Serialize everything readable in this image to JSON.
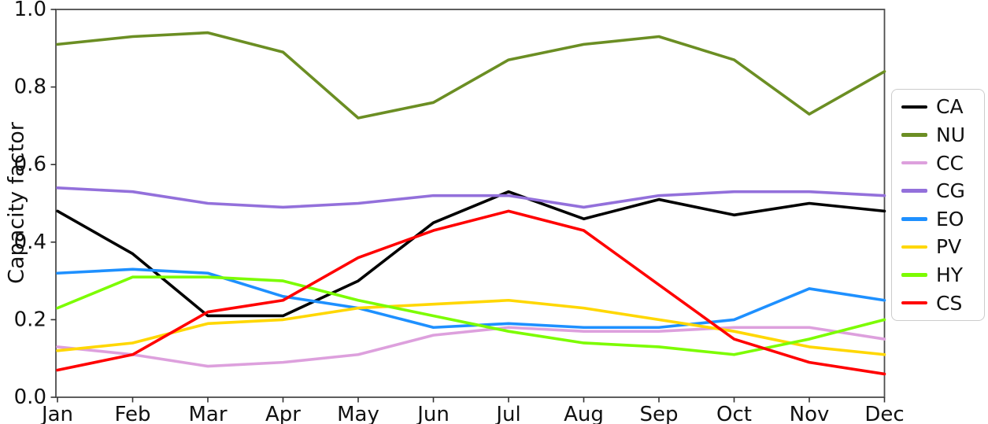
{
  "figure": {
    "background": "#ffffff",
    "spine_color": "#4d4d4d",
    "tick_color": "#333333",
    "label_color": "#111111"
  },
  "chart_data": {
    "type": "line",
    "title": "",
    "xlabel": "",
    "ylabel": "Capacity factor",
    "categories": [
      "Jan",
      "Feb",
      "Mar",
      "Apr",
      "May",
      "Jun",
      "Jul",
      "Aug",
      "Sep",
      "Oct",
      "Nov",
      "Dec"
    ],
    "ylim": [
      0.0,
      1.0
    ],
    "yticks": [
      0.0,
      0.2,
      0.4,
      0.6,
      0.8,
      1.0
    ],
    "grid": false,
    "legend_position": "outside-right",
    "series": [
      {
        "name": "CA",
        "color": "#000000",
        "values": [
          0.48,
          0.37,
          0.21,
          0.21,
          0.3,
          0.45,
          0.53,
          0.46,
          0.51,
          0.47,
          0.5,
          0.48
        ]
      },
      {
        "name": "NU",
        "color": "#6B8E23",
        "values": [
          0.91,
          0.93,
          0.94,
          0.89,
          0.72,
          0.76,
          0.87,
          0.91,
          0.93,
          0.87,
          0.73,
          0.84
        ]
      },
      {
        "name": "CC",
        "color": "#DDA0DD",
        "values": [
          0.13,
          0.11,
          0.08,
          0.09,
          0.11,
          0.16,
          0.18,
          0.17,
          0.17,
          0.18,
          0.18,
          0.15
        ]
      },
      {
        "name": "CG",
        "color": "#9370DB",
        "values": [
          0.54,
          0.53,
          0.5,
          0.49,
          0.5,
          0.52,
          0.52,
          0.49,
          0.52,
          0.53,
          0.53,
          0.52
        ]
      },
      {
        "name": "EO",
        "color": "#1E90FF",
        "values": [
          0.32,
          0.33,
          0.32,
          0.26,
          0.23,
          0.18,
          0.19,
          0.18,
          0.18,
          0.2,
          0.28,
          0.25
        ]
      },
      {
        "name": "PV",
        "color": "#FFD700",
        "values": [
          0.12,
          0.14,
          0.19,
          0.2,
          0.23,
          0.24,
          0.25,
          0.23,
          0.2,
          0.17,
          0.13,
          0.11
        ]
      },
      {
        "name": "HY",
        "color": "#7CFC00",
        "values": [
          0.23,
          0.31,
          0.31,
          0.3,
          0.25,
          0.21,
          0.17,
          0.14,
          0.13,
          0.11,
          0.15,
          0.2
        ]
      },
      {
        "name": "CS",
        "color": "#FF0000",
        "values": [
          0.07,
          0.11,
          0.22,
          0.25,
          0.36,
          0.43,
          0.48,
          0.43,
          0.29,
          0.15,
          0.09,
          0.06
        ]
      }
    ]
  }
}
